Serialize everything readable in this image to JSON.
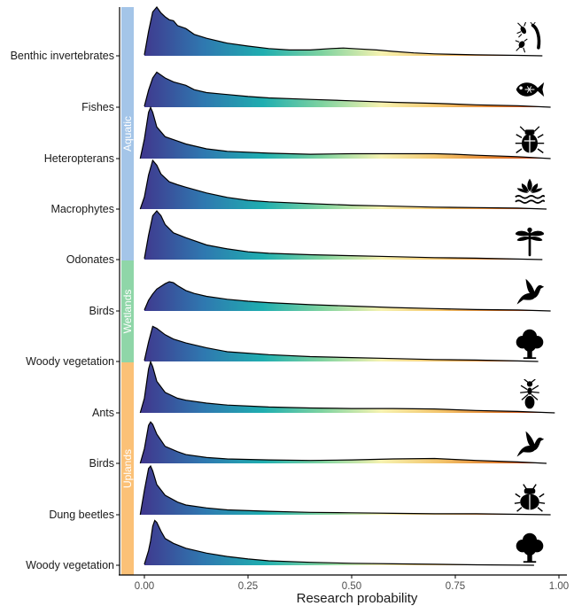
{
  "chart_data": {
    "type": "ridgeline",
    "xlabel": "Research probability",
    "xlim": [
      0,
      1
    ],
    "x_ticks": [
      "0.00",
      "0.25",
      "0.50",
      "0.75",
      "1.00"
    ],
    "fill_gradient": [
      "#3f3a8f",
      "#2f78b0",
      "#1faeb0",
      "#7fd3a0",
      "#f6f2b0",
      "#f3c46a",
      "#e07a2a",
      "#b82818"
    ],
    "groups": [
      {
        "name": "Aquatic",
        "color": "#a4c5e8"
      },
      {
        "name": "Wetlands",
        "color": "#8fd6a8"
      },
      {
        "name": "Uplands",
        "color": "#fbc177"
      }
    ],
    "ridges": [
      {
        "label": "Benthic invertebrates",
        "group": "Aquatic",
        "icon": "benthic-invertebrates-icon",
        "x_end": 0.96,
        "density": [
          [
            0.0,
            0.02
          ],
          [
            0.01,
            0.5
          ],
          [
            0.02,
            0.9
          ],
          [
            0.03,
            1.0
          ],
          [
            0.04,
            0.88
          ],
          [
            0.05,
            0.8
          ],
          [
            0.06,
            0.74
          ],
          [
            0.07,
            0.72
          ],
          [
            0.08,
            0.62
          ],
          [
            0.1,
            0.56
          ],
          [
            0.12,
            0.44
          ],
          [
            0.15,
            0.36
          ],
          [
            0.2,
            0.26
          ],
          [
            0.25,
            0.2
          ],
          [
            0.3,
            0.15
          ],
          [
            0.35,
            0.12
          ],
          [
            0.4,
            0.12
          ],
          [
            0.45,
            0.15
          ],
          [
            0.48,
            0.16
          ],
          [
            0.52,
            0.14
          ],
          [
            0.56,
            0.12
          ],
          [
            0.6,
            0.09
          ],
          [
            0.65,
            0.06
          ],
          [
            0.7,
            0.04
          ],
          [
            0.75,
            0.03
          ],
          [
            0.8,
            0.02
          ],
          [
            0.9,
            0.01
          ],
          [
            0.96,
            0.0
          ]
        ]
      },
      {
        "label": "Fishes",
        "group": "Aquatic",
        "icon": "fish-icon",
        "x_end": 0.98,
        "density": [
          [
            0.0,
            0.02
          ],
          [
            0.01,
            0.35
          ],
          [
            0.02,
            0.6
          ],
          [
            0.03,
            0.72
          ],
          [
            0.05,
            0.6
          ],
          [
            0.07,
            0.52
          ],
          [
            0.1,
            0.45
          ],
          [
            0.12,
            0.36
          ],
          [
            0.15,
            0.3
          ],
          [
            0.2,
            0.26
          ],
          [
            0.25,
            0.22
          ],
          [
            0.3,
            0.19
          ],
          [
            0.4,
            0.16
          ],
          [
            0.5,
            0.13
          ],
          [
            0.6,
            0.1
          ],
          [
            0.7,
            0.08
          ],
          [
            0.8,
            0.05
          ],
          [
            0.9,
            0.03
          ],
          [
            0.98,
            0.0
          ]
        ]
      },
      {
        "label": "Heteropterans",
        "group": "Aquatic",
        "icon": "beetle-icon",
        "x_end": 0.98,
        "density": [
          [
            -0.01,
            0.0
          ],
          [
            0.0,
            0.4
          ],
          [
            0.01,
            0.95
          ],
          [
            0.015,
            1.05
          ],
          [
            0.02,
            0.95
          ],
          [
            0.03,
            0.65
          ],
          [
            0.05,
            0.45
          ],
          [
            0.08,
            0.36
          ],
          [
            0.1,
            0.3
          ],
          [
            0.15,
            0.2
          ],
          [
            0.2,
            0.15
          ],
          [
            0.3,
            0.11
          ],
          [
            0.4,
            0.09
          ],
          [
            0.5,
            0.1
          ],
          [
            0.6,
            0.1
          ],
          [
            0.7,
            0.1
          ],
          [
            0.75,
            0.09
          ],
          [
            0.8,
            0.07
          ],
          [
            0.9,
            0.04
          ],
          [
            0.98,
            0.0
          ]
        ]
      },
      {
        "label": "Macrophytes",
        "group": "Aquatic",
        "icon": "water-plant-icon",
        "x_end": 0.97,
        "density": [
          [
            -0.01,
            0.0
          ],
          [
            0.0,
            0.25
          ],
          [
            0.01,
            0.7
          ],
          [
            0.02,
            1.0
          ],
          [
            0.03,
            0.9
          ],
          [
            0.04,
            0.72
          ],
          [
            0.06,
            0.56
          ],
          [
            0.08,
            0.5
          ],
          [
            0.1,
            0.45
          ],
          [
            0.15,
            0.33
          ],
          [
            0.2,
            0.24
          ],
          [
            0.25,
            0.18
          ],
          [
            0.3,
            0.15
          ],
          [
            0.4,
            0.11
          ],
          [
            0.5,
            0.08
          ],
          [
            0.6,
            0.06
          ],
          [
            0.7,
            0.04
          ],
          [
            0.8,
            0.03
          ],
          [
            0.9,
            0.02
          ],
          [
            0.97,
            0.0
          ]
        ]
      },
      {
        "label": "Odonates",
        "group": "Aquatic",
        "icon": "dragonfly-icon",
        "x_end": 0.96,
        "density": [
          [
            0.0,
            0.02
          ],
          [
            0.01,
            0.5
          ],
          [
            0.02,
            0.9
          ],
          [
            0.03,
            1.0
          ],
          [
            0.04,
            0.9
          ],
          [
            0.05,
            0.72
          ],
          [
            0.07,
            0.55
          ],
          [
            0.1,
            0.45
          ],
          [
            0.15,
            0.3
          ],
          [
            0.2,
            0.22
          ],
          [
            0.25,
            0.16
          ],
          [
            0.3,
            0.13
          ],
          [
            0.4,
            0.1
          ],
          [
            0.5,
            0.08
          ],
          [
            0.6,
            0.06
          ],
          [
            0.7,
            0.04
          ],
          [
            0.8,
            0.03
          ],
          [
            0.9,
            0.01
          ],
          [
            0.96,
            0.0
          ]
        ]
      },
      {
        "label": "Birds",
        "group": "Wetlands",
        "icon": "bird-icon",
        "x_end": 0.98,
        "density": [
          [
            0.0,
            0.02
          ],
          [
            0.01,
            0.22
          ],
          [
            0.02,
            0.35
          ],
          [
            0.03,
            0.45
          ],
          [
            0.05,
            0.56
          ],
          [
            0.06,
            0.6
          ],
          [
            0.07,
            0.58
          ],
          [
            0.08,
            0.52
          ],
          [
            0.1,
            0.42
          ],
          [
            0.12,
            0.36
          ],
          [
            0.15,
            0.3
          ],
          [
            0.2,
            0.24
          ],
          [
            0.25,
            0.2
          ],
          [
            0.3,
            0.17
          ],
          [
            0.4,
            0.13
          ],
          [
            0.5,
            0.1
          ],
          [
            0.6,
            0.07
          ],
          [
            0.7,
            0.05
          ],
          [
            0.8,
            0.03
          ],
          [
            0.9,
            0.02
          ],
          [
            0.98,
            0.0
          ]
        ]
      },
      {
        "label": "Woody vegetation",
        "group": "Wetlands",
        "icon": "tree-icon",
        "x_end": 0.95,
        "density": [
          [
            0.0,
            0.02
          ],
          [
            0.01,
            0.4
          ],
          [
            0.02,
            0.72
          ],
          [
            0.03,
            0.68
          ],
          [
            0.05,
            0.55
          ],
          [
            0.07,
            0.46
          ],
          [
            0.1,
            0.38
          ],
          [
            0.15,
            0.28
          ],
          [
            0.2,
            0.2
          ],
          [
            0.3,
            0.14
          ],
          [
            0.4,
            0.1
          ],
          [
            0.5,
            0.08
          ],
          [
            0.6,
            0.06
          ],
          [
            0.7,
            0.04
          ],
          [
            0.8,
            0.03
          ],
          [
            0.9,
            0.01
          ],
          [
            0.95,
            0.0
          ]
        ]
      },
      {
        "label": "Ants",
        "group": "Uplands",
        "icon": "ant-icon",
        "x_end": 0.99,
        "density": [
          [
            -0.01,
            0.0
          ],
          [
            0.0,
            0.3
          ],
          [
            0.01,
            0.9
          ],
          [
            0.015,
            1.05
          ],
          [
            0.02,
            0.95
          ],
          [
            0.03,
            0.65
          ],
          [
            0.05,
            0.42
          ],
          [
            0.08,
            0.3
          ],
          [
            0.1,
            0.26
          ],
          [
            0.15,
            0.2
          ],
          [
            0.2,
            0.16
          ],
          [
            0.3,
            0.12
          ],
          [
            0.4,
            0.1
          ],
          [
            0.5,
            0.09
          ],
          [
            0.6,
            0.09
          ],
          [
            0.7,
            0.08
          ],
          [
            0.8,
            0.05
          ],
          [
            0.9,
            0.03
          ],
          [
            0.99,
            0.0
          ]
        ]
      },
      {
        "label": "Birds",
        "group": "Uplands",
        "icon": "bird-icon",
        "x_end": 0.97,
        "density": [
          [
            -0.01,
            0.0
          ],
          [
            0.0,
            0.3
          ],
          [
            0.01,
            0.78
          ],
          [
            0.015,
            0.85
          ],
          [
            0.02,
            0.8
          ],
          [
            0.03,
            0.6
          ],
          [
            0.05,
            0.35
          ],
          [
            0.08,
            0.24
          ],
          [
            0.1,
            0.18
          ],
          [
            0.15,
            0.12
          ],
          [
            0.2,
            0.09
          ],
          [
            0.3,
            0.07
          ],
          [
            0.4,
            0.06
          ],
          [
            0.5,
            0.07
          ],
          [
            0.6,
            0.09
          ],
          [
            0.7,
            0.1
          ],
          [
            0.75,
            0.08
          ],
          [
            0.8,
            0.06
          ],
          [
            0.9,
            0.03
          ],
          [
            0.97,
            0.0
          ]
        ]
      },
      {
        "label": "Dung beetles",
        "group": "Uplands",
        "icon": "dung-beetle-icon",
        "x_end": 0.98,
        "density": [
          [
            -0.01,
            0.0
          ],
          [
            0.0,
            0.5
          ],
          [
            0.01,
            0.95
          ],
          [
            0.015,
            1.0
          ],
          [
            0.02,
            0.9
          ],
          [
            0.03,
            0.62
          ],
          [
            0.05,
            0.4
          ],
          [
            0.08,
            0.26
          ],
          [
            0.1,
            0.2
          ],
          [
            0.15,
            0.14
          ],
          [
            0.2,
            0.1
          ],
          [
            0.3,
            0.07
          ],
          [
            0.4,
            0.05
          ],
          [
            0.5,
            0.04
          ],
          [
            0.6,
            0.03
          ],
          [
            0.7,
            0.02
          ],
          [
            0.8,
            0.02
          ],
          [
            0.9,
            0.01
          ],
          [
            0.98,
            0.0
          ]
        ]
      },
      {
        "label": "Woody vegetation",
        "group": "Uplands",
        "icon": "tree-icon",
        "x_end": 0.94,
        "density": [
          [
            0.0,
            0.02
          ],
          [
            0.01,
            0.3
          ],
          [
            0.015,
            0.5
          ],
          [
            0.02,
            0.8
          ],
          [
            0.025,
            0.92
          ],
          [
            0.03,
            0.88
          ],
          [
            0.04,
            0.7
          ],
          [
            0.05,
            0.55
          ],
          [
            0.07,
            0.45
          ],
          [
            0.1,
            0.35
          ],
          [
            0.15,
            0.25
          ],
          [
            0.2,
            0.18
          ],
          [
            0.25,
            0.13
          ],
          [
            0.3,
            0.09
          ],
          [
            0.4,
            0.06
          ],
          [
            0.5,
            0.04
          ],
          [
            0.6,
            0.03
          ],
          [
            0.7,
            0.02
          ],
          [
            0.8,
            0.01
          ],
          [
            0.94,
            0.0
          ]
        ]
      }
    ]
  }
}
